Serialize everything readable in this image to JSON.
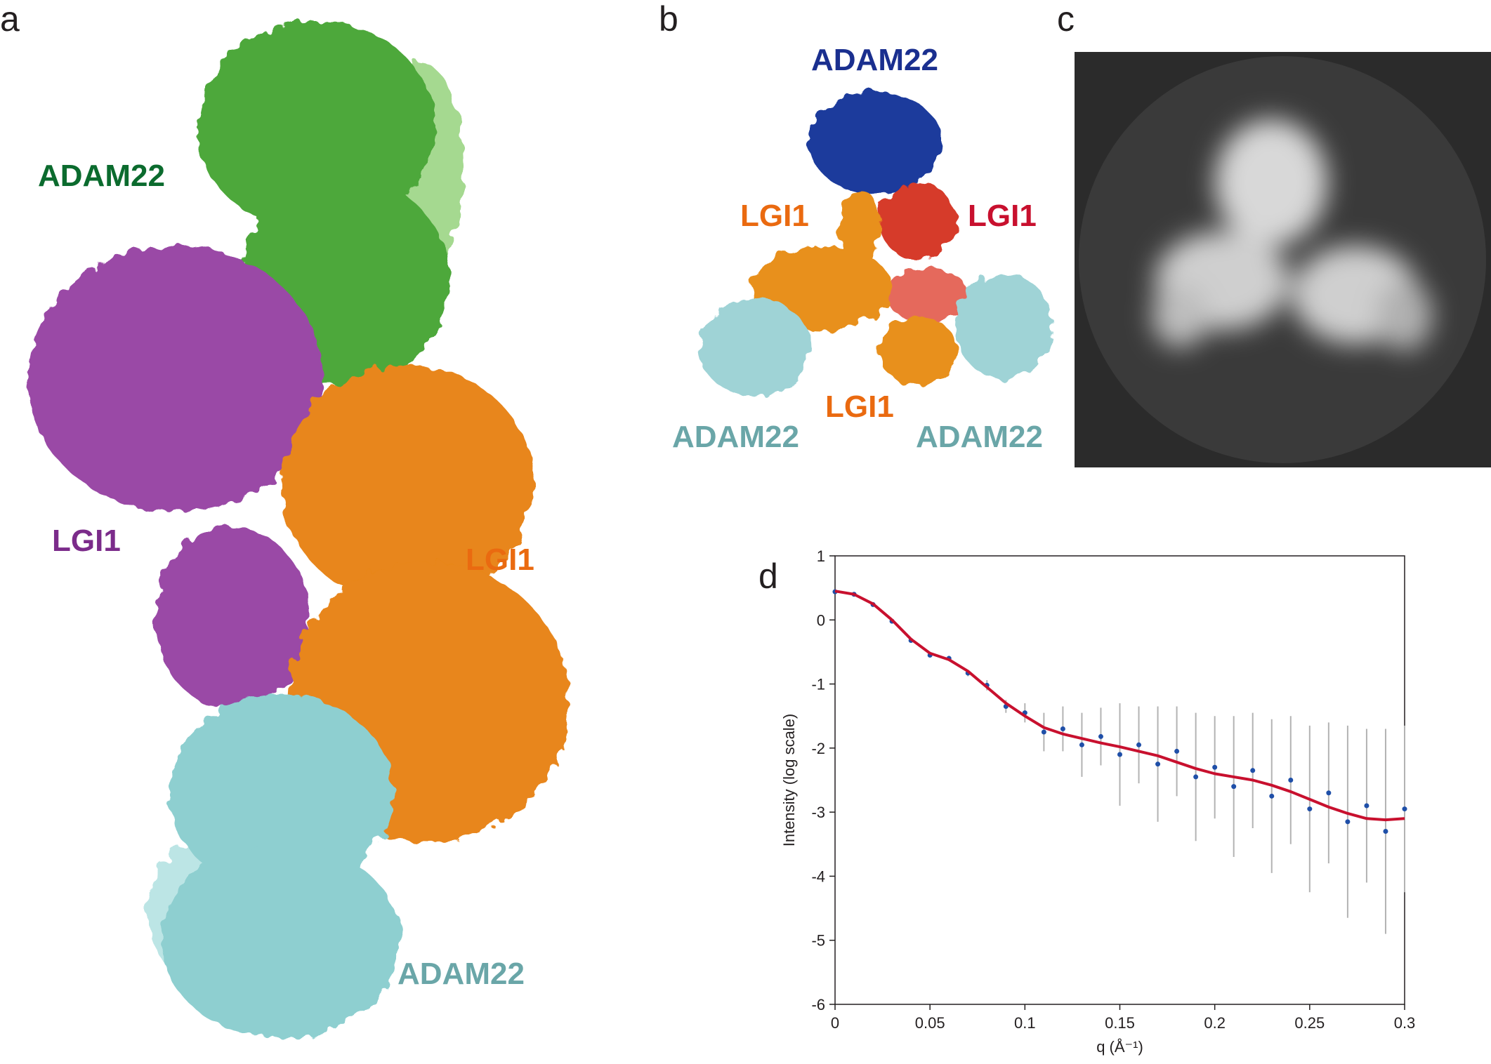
{
  "panels": [
    {
      "label": "a",
      "annotations": [
        "ADAM22",
        "LGI1",
        "LGI1",
        "ADAM22"
      ]
    },
    {
      "label": "b",
      "annotations": [
        "ADAM22",
        "LGI1",
        "LGI1",
        "LGI1",
        "ADAM22",
        "ADAM22"
      ]
    },
    {
      "label": "c"
    },
    {
      "label": "d"
    }
  ],
  "chart_data": {
    "type": "scatter",
    "xlabel": "q (Å⁻¹)",
    "ylabel": "Intensity (log scale)",
    "x": [
      0,
      0.01,
      0.02,
      0.03,
      0.04,
      0.05,
      0.06,
      0.07,
      0.08,
      0.09,
      0.1,
      0.11,
      0.12,
      0.13,
      0.14,
      0.15,
      0.16,
      0.17,
      0.18,
      0.19,
      0.2,
      0.21,
      0.22,
      0.23,
      0.24,
      0.25,
      0.26,
      0.27,
      0.28,
      0.29,
      0.3
    ],
    "series": [
      {
        "color": "#1f4fa8",
        "style": "points",
        "error_color": "#b3b3b3",
        "values": [
          0.44,
          0.4,
          0.24,
          -0.02,
          -0.32,
          -0.55,
          -0.6,
          -0.83,
          -1.02,
          -1.35,
          -1.45,
          -1.75,
          -1.7,
          -1.95,
          -1.82,
          -2.1,
          -1.95,
          -2.25,
          -2.05,
          -2.45,
          -2.3,
          -2.6,
          -2.35,
          -2.75,
          -2.5,
          -2.95,
          -2.7,
          -3.15,
          -2.9,
          -3.3,
          -2.95
        ],
        "errors": [
          0.01,
          0.01,
          0.01,
          0.02,
          0.02,
          0.03,
          0.04,
          0.05,
          0.08,
          0.1,
          0.15,
          0.3,
          0.35,
          0.5,
          0.45,
          0.8,
          0.6,
          0.9,
          0.7,
          1.0,
          0.8,
          1.1,
          0.9,
          1.2,
          1.0,
          1.3,
          1.1,
          1.5,
          1.2,
          1.6,
          1.3
        ]
      },
      {
        "color": "#c8102e",
        "style": "line",
        "values": [
          0.45,
          0.4,
          0.25,
          0.0,
          -0.3,
          -0.52,
          -0.62,
          -0.8,
          -1.05,
          -1.3,
          -1.5,
          -1.68,
          -1.78,
          -1.85,
          -1.92,
          -1.98,
          -2.05,
          -2.12,
          -2.22,
          -2.32,
          -2.4,
          -2.45,
          -2.5,
          -2.58,
          -2.68,
          -2.8,
          -2.92,
          -3.02,
          -3.1,
          -3.12,
          -3.1
        ]
      }
    ],
    "xlim": [
      0,
      0.3
    ],
    "xticks": [
      0,
      0.05,
      0.1,
      0.15,
      0.2,
      0.25,
      0.3
    ],
    "ylim": [
      -6,
      1
    ],
    "yticks": [
      -6,
      -5,
      -4,
      -3,
      -2,
      -1,
      0,
      1
    ]
  }
}
